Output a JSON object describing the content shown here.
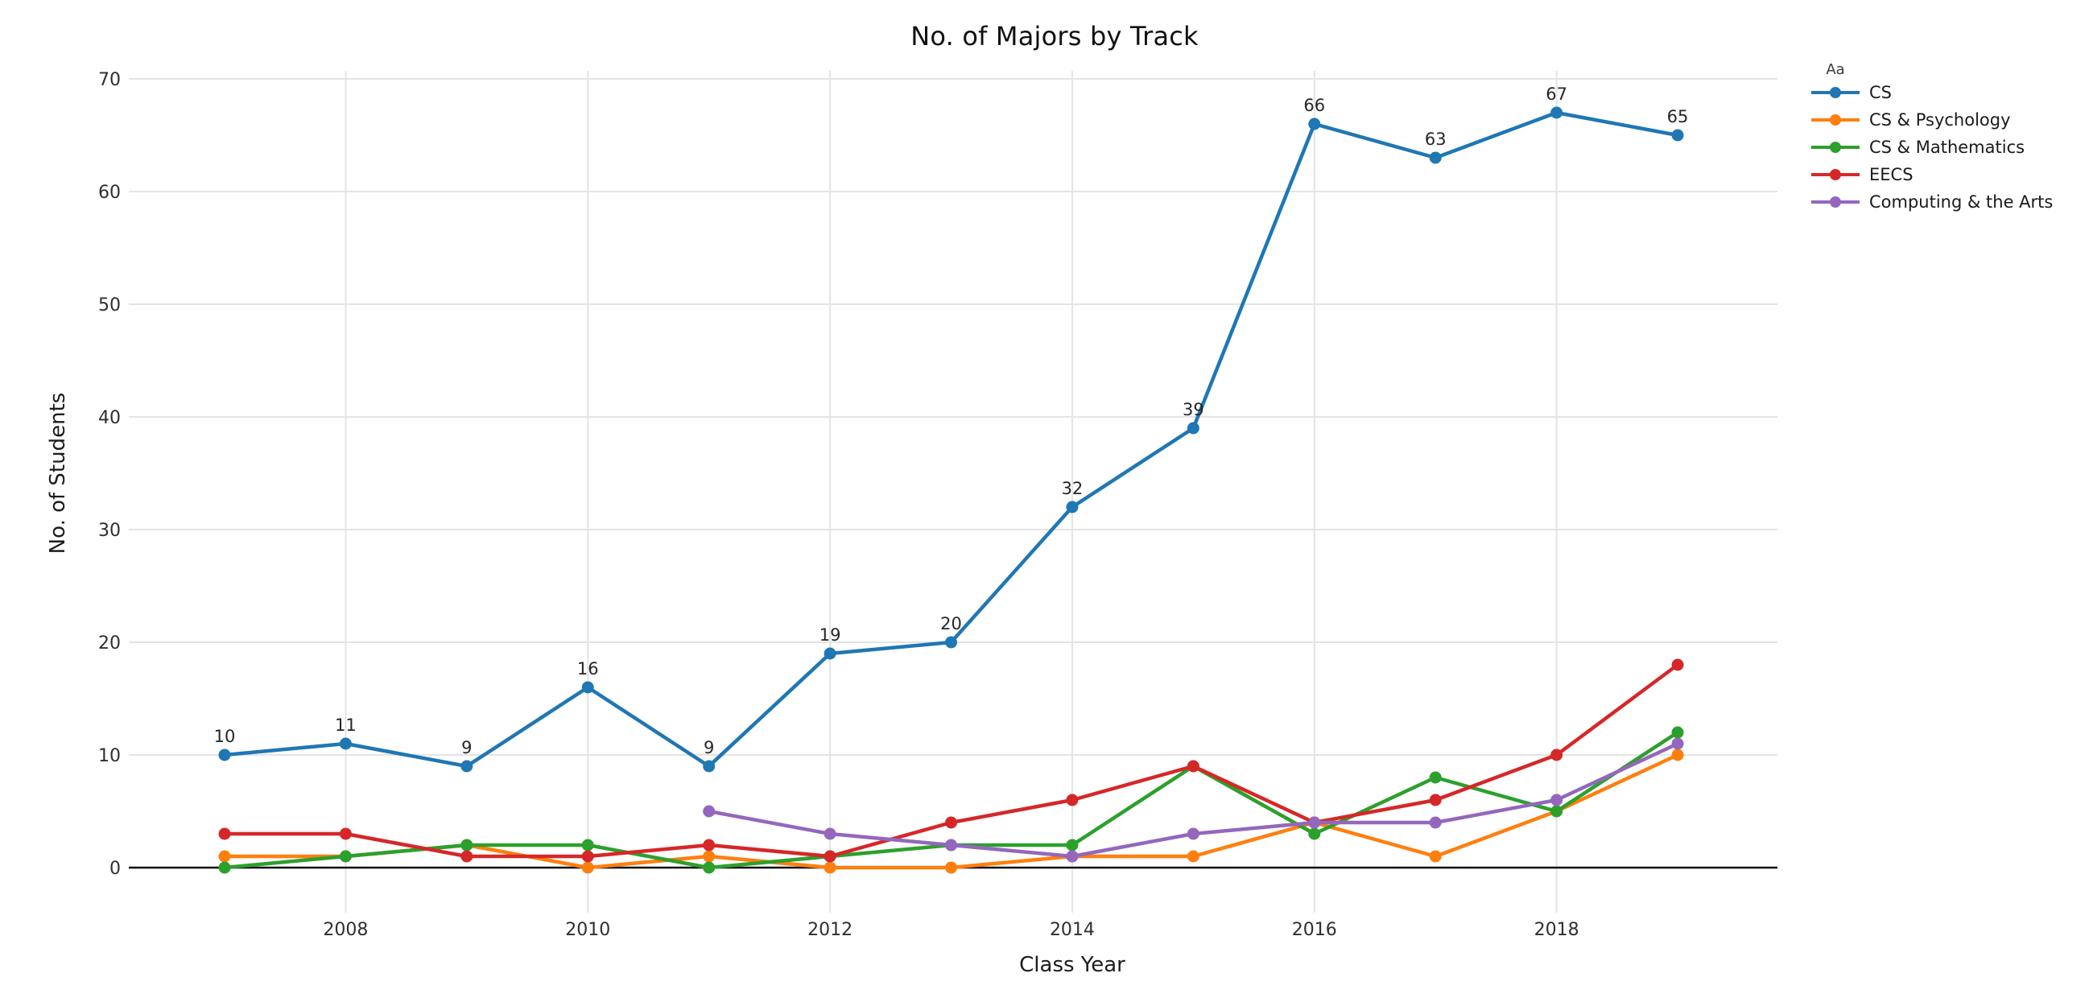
{
  "title": "No. of Majors by Track",
  "legend": {
    "title": "Aa"
  },
  "axes": {
    "x_label": "Class Year",
    "y_label": "No. of Students"
  },
  "chart_data": {
    "type": "line",
    "title": "No. of Majors by Track",
    "xlabel": "Class Year",
    "ylabel": "No. of Students",
    "x": [
      2007,
      2008,
      2009,
      2010,
      2011,
      2012,
      2013,
      2014,
      2015,
      2016,
      2017,
      2018,
      2019
    ],
    "x_ticks": [
      2008,
      2010,
      2012,
      2014,
      2016,
      2018
    ],
    "y_ticks": [
      0,
      10,
      20,
      30,
      40,
      50,
      60,
      70
    ],
    "ylim": [
      0,
      70
    ],
    "grid": true,
    "legend_title": "Aa",
    "legend_position": "top-right",
    "point_label_color": "#262626",
    "grid_color": "#e4e4e4",
    "axis_line_color": "#0a0a0a",
    "tick_label_color": "#2f2f2f",
    "series": [
      {
        "name": "CS",
        "color": "#1f77b4",
        "show_point_labels": true,
        "values": [
          10,
          11,
          9,
          16,
          9,
          19,
          20,
          32,
          39,
          66,
          63,
          67,
          65
        ]
      },
      {
        "name": "CS & Psychology",
        "color": "#ff7f0e",
        "show_point_labels": false,
        "values": [
          1,
          1,
          2,
          0,
          1,
          0,
          0,
          1,
          1,
          4,
          1,
          5,
          10
        ]
      },
      {
        "name": "CS & Mathematics",
        "color": "#2ca02c",
        "show_point_labels": false,
        "values": [
          0,
          1,
          2,
          2,
          0,
          1,
          2,
          2,
          9,
          3,
          8,
          5,
          12
        ]
      },
      {
        "name": "EECS",
        "color": "#d62728",
        "show_point_labels": false,
        "values": [
          3,
          3,
          1,
          1,
          2,
          1,
          4,
          6,
          9,
          4,
          6,
          10,
          18
        ]
      },
      {
        "name": "Computing & the Arts",
        "color": "#9467bd",
        "show_point_labels": false,
        "values": [
          null,
          null,
          null,
          null,
          5,
          3,
          2,
          1,
          3,
          4,
          4,
          6,
          11
        ]
      }
    ]
  }
}
